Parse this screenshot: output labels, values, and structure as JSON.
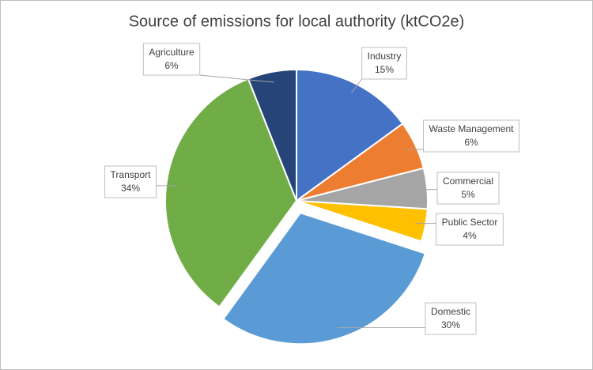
{
  "chart_data": {
    "type": "pie",
    "title": "Source of emissions for local authority (ktCO2e)",
    "categories": [
      "Industry",
      "Waste Management",
      "Commercial",
      "Public Sector",
      "Domestic",
      "Transport",
      "Agriculture"
    ],
    "values": [
      15,
      6,
      5,
      4,
      30,
      34,
      6
    ],
    "value_labels": [
      "15%",
      "6%",
      "5%",
      "4%",
      "30%",
      "34%",
      "6%"
    ],
    "colors": [
      "#4472c4",
      "#ed7d31",
      "#a5a5a5",
      "#ffc000",
      "#5b9bd5",
      "#70ad47",
      "#264478"
    ],
    "exploded": [
      "Domestic"
    ]
  }
}
